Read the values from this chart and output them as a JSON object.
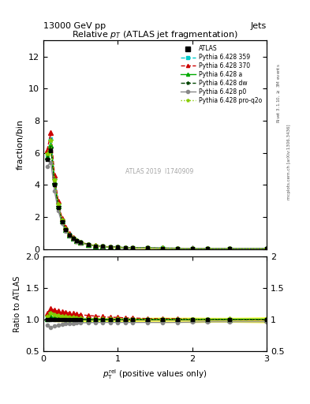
{
  "title": "Relative $p_T$ (ATLAS jet fragmentation)",
  "header_left": "13000 GeV pp",
  "header_right": "Jets",
  "ylabel_main": "fraction/bin",
  "ylabel_ratio": "Ratio to ATLAS",
  "watermark": "ATLAS 2019  I1740909",
  "x_data": [
    0.05,
    0.1,
    0.15,
    0.2,
    0.25,
    0.3,
    0.35,
    0.4,
    0.45,
    0.5,
    0.6,
    0.7,
    0.8,
    0.9,
    1.0,
    1.1,
    1.2,
    1.4,
    1.6,
    1.8,
    2.0,
    2.2,
    2.5,
    3.0
  ],
  "atlas_y": [
    5.6,
    6.15,
    4.0,
    2.6,
    1.7,
    1.2,
    0.85,
    0.65,
    0.5,
    0.4,
    0.28,
    0.2,
    0.16,
    0.13,
    0.11,
    0.09,
    0.08,
    0.065,
    0.055,
    0.048,
    0.042,
    0.038,
    0.033,
    0.025
  ],
  "atlas_err": [
    0.1,
    0.1,
    0.08,
    0.06,
    0.04,
    0.03,
    0.02,
    0.015,
    0.012,
    0.01,
    0.007,
    0.005,
    0.004,
    0.003,
    0.003,
    0.002,
    0.002,
    0.002,
    0.002,
    0.0015,
    0.0015,
    0.0012,
    0.001,
    0.001
  ],
  "mc_lines": [
    {
      "label": "Pythia 6.428 359",
      "color": "#00CCCC",
      "linestyle": "--",
      "marker": "s",
      "markersize": 3,
      "ratio_y": [
        1.05,
        1.12,
        1.1,
        1.08,
        1.07,
        1.06,
        1.05,
        1.04,
        1.03,
        1.02,
        1.02,
        1.01,
        1.01,
        1.01,
        1.01,
        1.01,
        1.01,
        1.01,
        1.01,
        1.01,
        1.01,
        1.01,
        1.01,
        1.01
      ]
    },
    {
      "label": "Pythia 6.428 370",
      "color": "#CC0000",
      "linestyle": "--",
      "marker": "^",
      "markersize": 4,
      "ratio_y": [
        1.1,
        1.18,
        1.15,
        1.14,
        1.13,
        1.12,
        1.11,
        1.1,
        1.09,
        1.08,
        1.07,
        1.06,
        1.05,
        1.04,
        1.04,
        1.03,
        1.03,
        1.02,
        1.02,
        1.02,
        1.01,
        1.01,
        1.01,
        1.0
      ]
    },
    {
      "label": "Pythia 6.428 a",
      "color": "#00AA00",
      "linestyle": "-",
      "marker": "^",
      "markersize": 4,
      "ratio_y": [
        1.02,
        1.05,
        1.04,
        1.03,
        1.03,
        1.02,
        1.02,
        1.02,
        1.015,
        1.01,
        1.01,
        1.01,
        1.01,
        1.01,
        1.01,
        1.01,
        1.01,
        1.01,
        1.01,
        1.01,
        1.01,
        1.01,
        1.01,
        1.01
      ]
    },
    {
      "label": "Pythia 6.428 dw",
      "color": "#004400",
      "linestyle": "--",
      "marker": "*",
      "markersize": 4,
      "ratio_y": [
        1.0,
        1.02,
        1.01,
        1.01,
        1.01,
        1.01,
        1.005,
        1.005,
        1.005,
        1.005,
        1.005,
        1.005,
        1.005,
        1.005,
        1.005,
        1.005,
        1.005,
        1.005,
        1.005,
        1.005,
        1.005,
        1.005,
        1.005,
        1.005
      ]
    },
    {
      "label": "Pythia 6.428 p0",
      "color": "#888888",
      "linestyle": "-",
      "marker": "o",
      "markersize": 3,
      "ratio_y": [
        0.92,
        0.88,
        0.9,
        0.92,
        0.93,
        0.94,
        0.94,
        0.945,
        0.95,
        0.955,
        0.955,
        0.96,
        0.96,
        0.96,
        0.96,
        0.96,
        0.96,
        0.96,
        0.96,
        0.96,
        0.965,
        0.97,
        0.97,
        0.97
      ]
    },
    {
      "label": "Pythia 6.428 pro-q2o",
      "color": "#88CC00",
      "linestyle": ":",
      "marker": "*",
      "markersize": 4,
      "ratio_y": [
        1.06,
        1.1,
        1.08,
        1.07,
        1.06,
        1.05,
        1.04,
        1.04,
        1.03,
        1.03,
        1.02,
        1.02,
        1.02,
        1.015,
        1.015,
        1.01,
        1.01,
        1.01,
        1.01,
        1.01,
        1.01,
        1.01,
        1.015,
        1.015
      ]
    }
  ],
  "ylim_main": [
    0,
    13
  ],
  "ylim_ratio": [
    0.5,
    2.0
  ],
  "xlim": [
    0,
    3.0
  ],
  "yticks_main": [
    0,
    2,
    4,
    6,
    8,
    10,
    12
  ],
  "yticks_ratio": [
    0.5,
    1.0,
    1.5,
    2.0
  ],
  "xticks": [
    0,
    1,
    2,
    3
  ],
  "background_color": "#ffffff"
}
